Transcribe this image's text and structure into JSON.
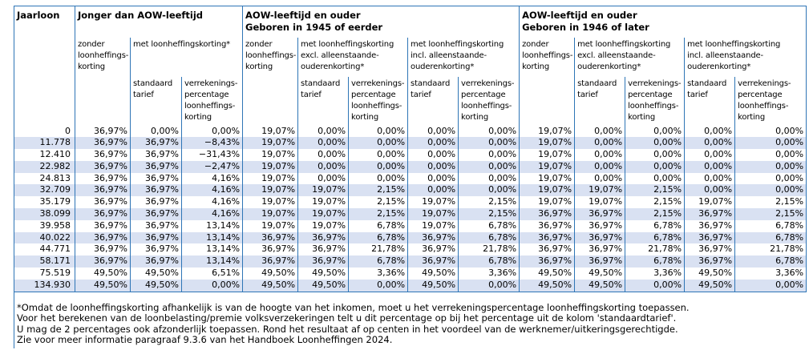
{
  "colors": {
    "line_blue": "#2e75b6",
    "stripe_blue": "#d9e1f2"
  },
  "table": {
    "corner_label": "Jaarloon",
    "groups": [
      {
        "title": "Jonger dan AOW-leeftijd"
      },
      {
        "title": "AOW-leeftijd en ouder\nGeboren in 1945 of eerder"
      },
      {
        "title": "AOW-leeftijd en ouder\nGeboren in 1946 of later"
      }
    ],
    "headers": {
      "zonder": "zonder\nloonheffings-\nkorting",
      "met": "met loonheffingskorting*",
      "met_excl": "met loonheffingskorting\nexcl. alleenstaande-\nouderenkorting*",
      "met_incl": "met loonheffingskorting\nincl. alleenstaande-\nouderenkorting*",
      "standaard": "standaard\ntarief",
      "verrekening": "verrekenings-\npercentage\nloonheffings-\nkorting"
    },
    "rows": [
      [
        "0",
        "36,97%",
        "0,00%",
        "0,00%",
        "19,07%",
        "0,00%",
        "0,00%",
        "0,00%",
        "0,00%",
        "19,07%",
        "0,00%",
        "0,00%",
        "0,00%",
        "0,00%"
      ],
      [
        "11.778",
        "36,97%",
        "36,97%",
        "−8,43%",
        "19,07%",
        "0,00%",
        "0,00%",
        "0,00%",
        "0,00%",
        "19,07%",
        "0,00%",
        "0,00%",
        "0,00%",
        "0,00%"
      ],
      [
        "12.410",
        "36,97%",
        "36,97%",
        "−31,43%",
        "19,07%",
        "0,00%",
        "0,00%",
        "0,00%",
        "0,00%",
        "19,07%",
        "0,00%",
        "0,00%",
        "0,00%",
        "0,00%"
      ],
      [
        "22.982",
        "36,97%",
        "36,97%",
        "−2,47%",
        "19,07%",
        "0,00%",
        "0,00%",
        "0,00%",
        "0,00%",
        "19,07%",
        "0,00%",
        "0,00%",
        "0,00%",
        "0,00%"
      ],
      [
        "24.813",
        "36,97%",
        "36,97%",
        "4,16%",
        "19,07%",
        "0,00%",
        "0,00%",
        "0,00%",
        "0,00%",
        "19,07%",
        "0,00%",
        "0,00%",
        "0,00%",
        "0,00%"
      ],
      [
        "32.709",
        "36,97%",
        "36,97%",
        "4,16%",
        "19,07%",
        "19,07%",
        "2,15%",
        "0,00%",
        "0,00%",
        "19,07%",
        "19,07%",
        "2,15%",
        "0,00%",
        "0,00%"
      ],
      [
        "35.179",
        "36,97%",
        "36,97%",
        "4,16%",
        "19,07%",
        "19,07%",
        "2,15%",
        "19,07%",
        "2,15%",
        "19,07%",
        "19,07%",
        "2,15%",
        "19,07%",
        "2,15%"
      ],
      [
        "38.099",
        "36,97%",
        "36,97%",
        "4,16%",
        "19,07%",
        "19,07%",
        "2,15%",
        "19,07%",
        "2,15%",
        "36,97%",
        "36,97%",
        "2,15%",
        "36,97%",
        "2,15%"
      ],
      [
        "39.958",
        "36,97%",
        "36,97%",
        "13,14%",
        "19,07%",
        "19,07%",
        "6,78%",
        "19,07%",
        "6,78%",
        "36,97%",
        "36,97%",
        "6,78%",
        "36,97%",
        "6,78%"
      ],
      [
        "40.022",
        "36,97%",
        "36,97%",
        "13,14%",
        "36,97%",
        "36,97%",
        "6,78%",
        "36,97%",
        "6,78%",
        "36,97%",
        "36,97%",
        "6,78%",
        "36,97%",
        "6,78%"
      ],
      [
        "44.771",
        "36,97%",
        "36,97%",
        "13,14%",
        "36,97%",
        "36,97%",
        "21,78%",
        "36,97%",
        "21,78%",
        "36,97%",
        "36,97%",
        "21,78%",
        "36,97%",
        "21,78%"
      ],
      [
        "58.171",
        "36,97%",
        "36,97%",
        "13,14%",
        "36,97%",
        "36,97%",
        "6,78%",
        "36,97%",
        "6,78%",
        "36,97%",
        "36,97%",
        "6,78%",
        "36,97%",
        "6,78%"
      ],
      [
        "75.519",
        "49,50%",
        "49,50%",
        "6,51%",
        "49,50%",
        "49,50%",
        "3,36%",
        "49,50%",
        "3,36%",
        "49,50%",
        "49,50%",
        "3,36%",
        "49,50%",
        "3,36%"
      ],
      [
        "134.930",
        "49,50%",
        "49,50%",
        "0,00%",
        "49,50%",
        "49,50%",
        "0,00%",
        "49,50%",
        "0,00%",
        "49,50%",
        "49,50%",
        "0,00%",
        "49,50%",
        "0,00%"
      ]
    ]
  },
  "footnote": {
    "lines": [
      "*Omdat de loonheffingskorting afhankelijk is van de hoogte van het inkomen, moet u het verrekeningspercentage loonheffingskorting toepassen.",
      "Voor het berekenen van de loonbelasting/premie volksverzekeringen telt u dit percentage op bij het percentage uit de kolom 'standaardtarief'.",
      "U mag de 2 percentages ook afzonderlijk toepassen. Rond het resultaat af op centen in het voordeel van de werknemer/uitkeringsgerechtigde.",
      "Zie voor meer informatie paragraaf 9.3.6 van het Handboek Loonheffingen 2024."
    ]
  }
}
